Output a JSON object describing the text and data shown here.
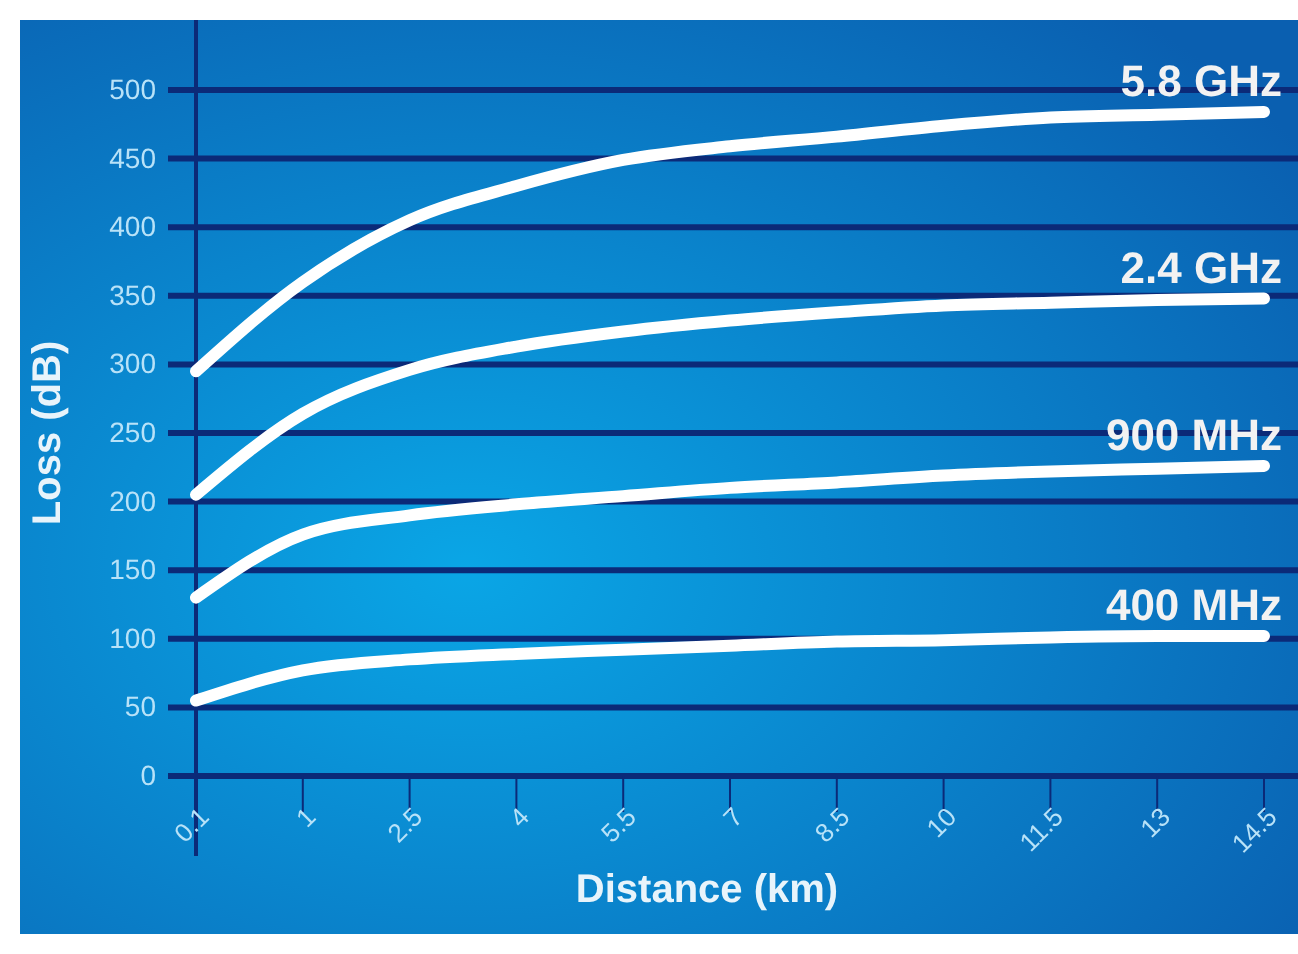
{
  "chart_data": {
    "type": "line",
    "xlabel": "Distance (km)",
    "ylabel": "Loss (dB)",
    "categories": [
      "0.1",
      "1",
      "2.5",
      "4",
      "5.5",
      "7",
      "8.5",
      "10",
      "11.5",
      "13",
      "14.5"
    ],
    "ylim": [
      0,
      500
    ],
    "yticks": [
      0,
      50,
      100,
      150,
      200,
      250,
      300,
      350,
      400,
      450,
      500
    ],
    "grid": "y",
    "legend": false,
    "marker": "none",
    "line_style": "solid",
    "series": [
      {
        "name": "5.8 GHz",
        "color": "#ffffff",
        "values": [
          295,
          360,
          405,
          430,
          449,
          459,
          466,
          474,
          480,
          482,
          484
        ]
      },
      {
        "name": "2.4 GHz",
        "color": "#ffffff",
        "values": [
          205,
          264,
          296,
          313,
          324,
          332,
          338,
          343,
          345,
          347,
          348
        ]
      },
      {
        "name": "900 MHz",
        "color": "#ffffff",
        "values": [
          130,
          176,
          190,
          198,
          204,
          210,
          214,
          219,
          222,
          224,
          226
        ]
      },
      {
        "name": "400 MHz",
        "color": "#ffffff",
        "values": [
          55,
          77,
          85,
          89,
          92,
          95,
          98,
          99,
          101,
          102,
          102
        ]
      }
    ]
  }
}
